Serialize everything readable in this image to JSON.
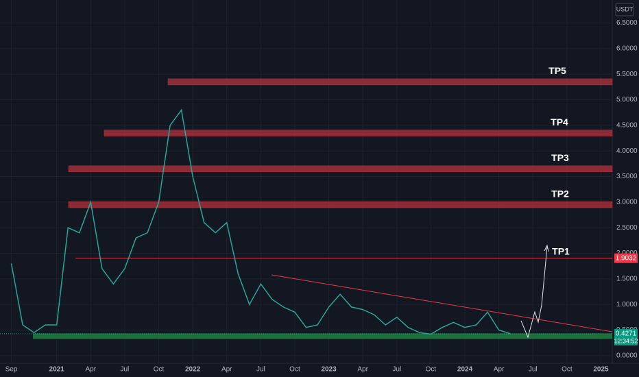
{
  "chart_data": {
    "type": "line",
    "currency": "USDT",
    "xlim": [
      "2020-08",
      "2025-02"
    ],
    "xticks": [
      {
        "value": "2020-09",
        "label": "Sep"
      },
      {
        "value": "2021-01",
        "label": "2021"
      },
      {
        "value": "2021-04",
        "label": "Apr"
      },
      {
        "value": "2021-07",
        "label": "Jul"
      },
      {
        "value": "2021-10",
        "label": "Oct"
      },
      {
        "value": "2022-01",
        "label": "2022"
      },
      {
        "value": "2022-04",
        "label": "Apr"
      },
      {
        "value": "2022-07",
        "label": "Jul"
      },
      {
        "value": "2022-10",
        "label": "Oct"
      },
      {
        "value": "2023-01",
        "label": "2023"
      },
      {
        "value": "2023-04",
        "label": "Apr"
      },
      {
        "value": "2023-07",
        "label": "Jul"
      },
      {
        "value": "2023-10",
        "label": "Oct"
      },
      {
        "value": "2024-01",
        "label": "2024"
      },
      {
        "value": "2024-04",
        "label": "Apr"
      },
      {
        "value": "2024-07",
        "label": "Jul"
      },
      {
        "value": "2024-10",
        "label": "Oct"
      },
      {
        "value": "2025-01",
        "label": "2025"
      }
    ],
    "ylim": [
      -0.15,
      6.95
    ],
    "yticks": [
      {
        "value": 0,
        "label": "0.0000"
      },
      {
        "value": 0.5,
        "label": "0.5000"
      },
      {
        "value": 1,
        "label": "1.0000"
      },
      {
        "value": 1.5,
        "label": "1.5000"
      },
      {
        "value": 2,
        "label": "2.0000"
      },
      {
        "value": 2.5,
        "label": "2.5000"
      },
      {
        "value": 3,
        "label": "3.0000"
      },
      {
        "value": 3.5,
        "label": "3.5000"
      },
      {
        "value": 4,
        "label": "4.0000"
      },
      {
        "value": 4.5,
        "label": "4.5000"
      },
      {
        "value": 5,
        "label": "5.0000"
      },
      {
        "value": 5.5,
        "label": "5.5000"
      },
      {
        "value": 6,
        "label": "6.0000"
      },
      {
        "value": 6.5,
        "label": "6.5000"
      }
    ],
    "grid": true,
    "series": [
      {
        "color": "#26a69a",
        "x": [
          "2020-09",
          "2020-10",
          "2020-11",
          "2020-12",
          "2021-01",
          "2021-02",
          "2021-03",
          "2021-04",
          "2021-05",
          "2021-06",
          "2021-07",
          "2021-08",
          "2021-09",
          "2021-10",
          "2021-11",
          "2021-12",
          "2022-01",
          "2022-02",
          "2022-03",
          "2022-04",
          "2022-05",
          "2022-06",
          "2022-07",
          "2022-08",
          "2022-09",
          "2022-10",
          "2022-11",
          "2022-12",
          "2023-01",
          "2023-02",
          "2023-03",
          "2023-04",
          "2023-05",
          "2023-06",
          "2023-07",
          "2023-08",
          "2023-09",
          "2023-10",
          "2023-11",
          "2023-12",
          "2024-01",
          "2024-02",
          "2024-03",
          "2024-04",
          "2024-05"
        ],
        "values": [
          1.8,
          0.6,
          0.45,
          0.6,
          0.6,
          2.5,
          2.4,
          3.0,
          1.7,
          1.4,
          1.7,
          2.3,
          2.4,
          3.0,
          4.5,
          4.8,
          3.5,
          2.6,
          2.4,
          2.6,
          1.6,
          1.0,
          1.4,
          1.1,
          0.95,
          0.85,
          0.55,
          0.6,
          0.95,
          1.2,
          0.95,
          0.9,
          0.8,
          0.6,
          0.75,
          0.55,
          0.45,
          0.42,
          0.55,
          0.65,
          0.55,
          0.6,
          0.85,
          0.5,
          0.43
        ]
      }
    ],
    "levels": [
      {
        "label": "TP1",
        "value": 1.9032,
        "color": "#f23645"
      },
      {
        "label": "TP2",
        "value": 2.95,
        "color": "#b2333d"
      },
      {
        "label": "TP3",
        "value": 3.65,
        "color": "#b2333d"
      },
      {
        "label": "TP4",
        "value": 4.35,
        "color": "#b2333d"
      },
      {
        "label": "TP5",
        "value": 5.35,
        "color": "#b2333d"
      }
    ],
    "support": {
      "value": 0.38,
      "color": "#1e7a3c"
    },
    "last_price": 0.4271,
    "countdown": "12:34:52"
  }
}
